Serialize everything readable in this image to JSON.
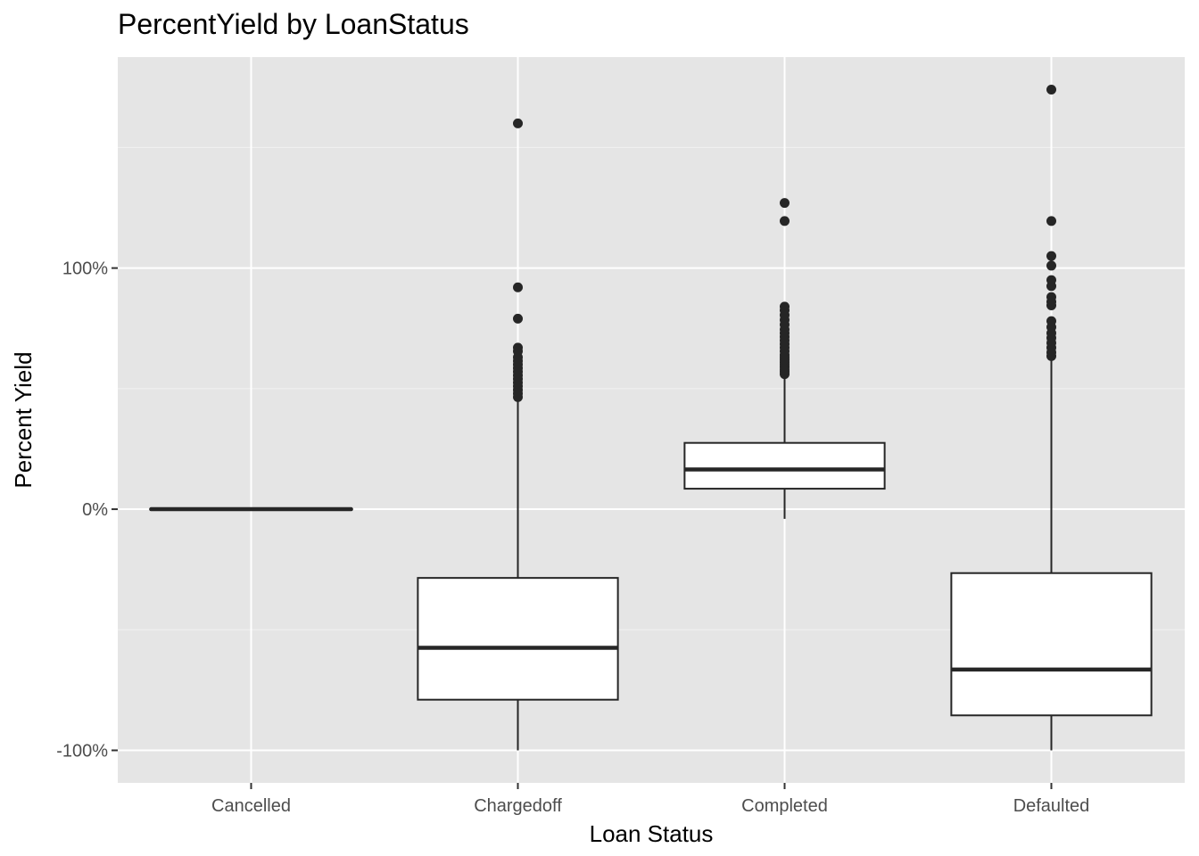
{
  "chart_data": {
    "type": "boxplot",
    "title": "PercentYield by LoanStatus",
    "xlabel": "Loan Status",
    "ylabel": "Percent Yield",
    "ylim": [
      -113.5,
      187.5
    ],
    "yticks": [
      {
        "value": -100,
        "label": "-100%"
      },
      {
        "value": 0,
        "label": "0%"
      },
      {
        "value": 100,
        "label": "100%"
      }
    ],
    "y_minor_ticks": [
      -50,
      50,
      150
    ],
    "grid": true,
    "categories": [
      "Cancelled",
      "Chargedoff",
      "Completed",
      "Defaulted"
    ],
    "boxes": [
      {
        "category": "Cancelled",
        "whisker_low": 0,
        "q1": 0,
        "median": 0,
        "q3": 0,
        "whisker_high": 0,
        "outliers": []
      },
      {
        "category": "Chargedoff",
        "whisker_low": -100,
        "q1": -79,
        "median": -57.5,
        "q3": -28.5,
        "whisker_high": 46,
        "outliers": [
          46.5,
          48,
          49.5,
          51,
          52.5,
          54,
          55.5,
          57,
          58.5,
          60,
          61.5,
          63,
          65.5,
          67,
          79,
          92,
          160
        ]
      },
      {
        "category": "Completed",
        "whisker_low": -4,
        "q1": 8.5,
        "median": 16.5,
        "q3": 27.5,
        "whisker_high": 55,
        "outliers": [
          56,
          57,
          58,
          59,
          60,
          61,
          62,
          63,
          64,
          65.5,
          67,
          68.5,
          70,
          71.5,
          73,
          74.5,
          76.5,
          78.5,
          80.5,
          82.5,
          84,
          119.5,
          127
        ]
      },
      {
        "category": "Defaulted",
        "whisker_low": -100,
        "q1": -85.5,
        "median": -66.5,
        "q3": -26.5,
        "whisker_high": 63,
        "outliers": [
          63.5,
          65,
          67,
          69,
          71,
          73,
          75.5,
          78,
          84.5,
          86,
          88,
          92.5,
          95,
          101,
          105,
          119.5,
          174
        ]
      }
    ]
  }
}
